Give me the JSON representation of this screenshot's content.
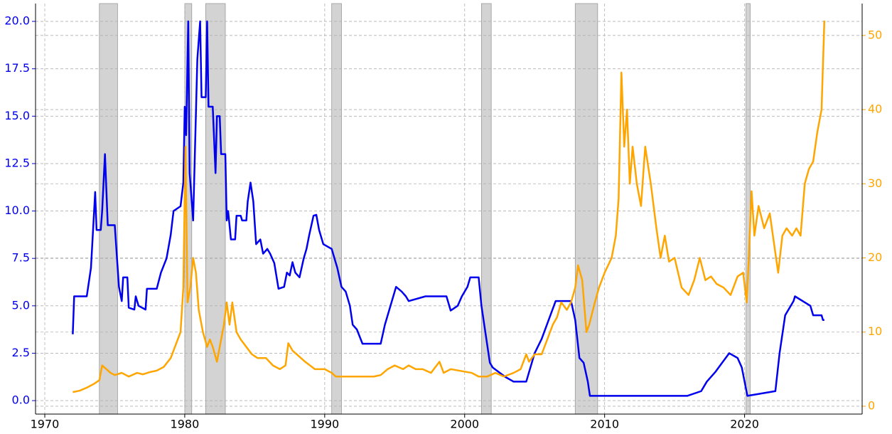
{
  "chart_data": {
    "type": "line",
    "xlim": [
      1969.34,
      2028.4
    ],
    "xticks": [
      1970,
      1980,
      1990,
      2000,
      2010,
      2020
    ],
    "ylim": [
      -0.71,
      20.94
    ],
    "yticks": [
      {
        "value": 0,
        "label": "0.0"
      },
      2.5,
      {
        "value": 5,
        "label": "5.0"
      },
      7.5,
      {
        "value": 10,
        "label": "10.0"
      },
      12.5,
      {
        "value": 15,
        "label": "15.0"
      },
      17.5,
      {
        "value": 20,
        "label": "20.0"
      }
    ],
    "y2lim": [
      -1.06,
      54.3
    ],
    "y2ticks": [
      0,
      10,
      20,
      30,
      40,
      50
    ],
    "grid": true,
    "shaded_regions": [
      [
        1973.9,
        1975.2
      ],
      [
        1980.0,
        1980.5
      ],
      [
        1981.5,
        1982.9
      ],
      [
        1990.5,
        1991.2
      ],
      [
        2001.2,
        2001.9
      ],
      [
        2007.9,
        2009.5
      ],
      [
        2020.1,
        2020.4
      ]
    ],
    "shade_color": "#d3d3d3",
    "series": [
      {
        "color": "#0000ee",
        "axis": "y",
        "x": [
          1972.0,
          1972.1,
          1973.0,
          1973.3,
          1973.6,
          1973.7,
          1974.0,
          1974.1,
          1974.3,
          1974.5,
          1975.0,
          1975.3,
          1975.5,
          1975.6,
          1975.9,
          1976.0,
          1976.4,
          1976.5,
          1976.7,
          1977.2,
          1977.3,
          1978.0,
          1978.3,
          1978.7,
          1979.0,
          1979.2,
          1979.7,
          1979.9,
          1980.0,
          1980.1,
          1980.25,
          1980.35,
          1980.6,
          1980.9,
          1981.1,
          1981.2,
          1981.5,
          1981.6,
          1981.7,
          1982.0,
          1982.2,
          1982.3,
          1982.5,
          1982.6,
          1982.9,
          1983.0,
          1983.1,
          1983.3,
          1983.6,
          1983.7,
          1984.0,
          1984.1,
          1984.4,
          1984.5,
          1984.7,
          1984.9,
          1985.1,
          1985.4,
          1985.6,
          1985.9,
          1986.1,
          1986.4,
          1986.7,
          1987.1,
          1987.3,
          1987.5,
          1987.7,
          1987.9,
          1988.2,
          1988.5,
          1988.7,
          1988.9,
          1989.2,
          1989.4,
          1989.6,
          1989.9,
          1990.5,
          1990.9,
          1991.2,
          1991.5,
          1991.8,
          1992.0,
          1992.3,
          1992.7,
          1994.0,
          1994.3,
          1994.6,
          1994.9,
          1995.1,
          1995.5,
          1995.8,
          1996.0,
          1997.2,
          1998.7,
          1999.0,
          1999.5,
          1999.8,
          2000.2,
          2000.4,
          2001.0,
          2001.2,
          2001.4,
          2001.8,
          2002.0,
          2002.9,
          2003.5,
          2004.4,
          2004.7,
          2005.0,
          2005.5,
          2006.0,
          2006.5,
          2007.6,
          2007.9,
          2008.2,
          2008.5,
          2008.8,
          2008.95,
          2015.9,
          2016.9,
          2017.3,
          2017.9,
          2018.4,
          2018.9,
          2019.5,
          2019.8,
          2020.2,
          2022.2,
          2022.5,
          2022.9,
          2023.5,
          2023.6,
          2024.7,
          2024.9,
          2025.5,
          2025.6,
          2025.7
        ],
        "values": [
          3.5,
          5.5,
          5.5,
          7.0,
          11.0,
          9.0,
          9.0,
          10.0,
          13.0,
          9.25,
          9.25,
          6.0,
          5.25,
          6.5,
          6.5,
          4.9,
          4.8,
          5.5,
          5.0,
          4.8,
          5.9,
          5.9,
          6.75,
          7.5,
          8.75,
          10.0,
          10.25,
          11.5,
          15.5,
          14.0,
          20.0,
          12.0,
          9.5,
          18.0,
          20.0,
          16.0,
          16.0,
          20.0,
          15.5,
          15.5,
          12.0,
          15.0,
          15.0,
          13.0,
          13.0,
          9.5,
          10.0,
          8.5,
          8.5,
          9.75,
          9.75,
          9.5,
          9.5,
          10.5,
          11.5,
          10.5,
          8.25,
          8.5,
          7.75,
          8.0,
          7.75,
          7.25,
          5.9,
          6.0,
          6.75,
          6.6,
          7.3,
          6.75,
          6.5,
          7.5,
          8.0,
          8.75,
          9.75,
          9.8,
          9.0,
          8.25,
          8.0,
          7.0,
          6.0,
          5.75,
          5.0,
          4.0,
          3.75,
          3.0,
          3.0,
          4.0,
          4.75,
          5.5,
          6.0,
          5.75,
          5.5,
          5.25,
          5.5,
          5.5,
          4.75,
          5.0,
          5.5,
          6.0,
          6.5,
          6.5,
          5.0,
          4.0,
          2.0,
          1.75,
          1.25,
          1.0,
          1.0,
          1.75,
          2.5,
          3.25,
          4.25,
          5.25,
          5.25,
          4.25,
          2.25,
          2.0,
          1.0,
          0.25,
          0.25,
          0.5,
          1.0,
          1.5,
          2.0,
          2.5,
          2.25,
          1.75,
          0.25,
          0.5,
          2.5,
          4.5,
          5.25,
          5.5,
          5.0,
          4.5,
          4.5,
          4.25,
          4.25
        ]
      },
      {
        "color": "#ffa500",
        "axis": "y2",
        "x": [
          1972.0,
          1972.5,
          1973.0,
          1973.5,
          1973.9,
          1974.1,
          1974.4,
          1974.7,
          1975.0,
          1975.5,
          1976.0,
          1976.6,
          1977.0,
          1977.5,
          1978.0,
          1978.5,
          1979.0,
          1979.4,
          1979.7,
          1979.9,
          1980.05,
          1980.2,
          1980.4,
          1980.6,
          1980.8,
          1981.0,
          1981.3,
          1981.6,
          1981.8,
          1982.0,
          1982.3,
          1982.6,
          1982.8,
          1983.0,
          1983.2,
          1983.4,
          1983.7,
          1984.0,
          1984.4,
          1984.8,
          1985.2,
          1985.8,
          1986.3,
          1986.8,
          1987.2,
          1987.4,
          1987.7,
          1988.0,
          1988.6,
          1989.3,
          1990.0,
          1990.5,
          1990.8,
          1991.5,
          1992.5,
          1993.5,
          1994.0,
          1994.5,
          1995.0,
          1995.6,
          1996.0,
          1996.5,
          1997.0,
          1997.6,
          1998.2,
          1998.5,
          1999.0,
          1999.6,
          2000.5,
          2001.0,
          2001.6,
          2002.2,
          2002.8,
          2003.5,
          2004.0,
          2004.4,
          2004.6,
          2005.0,
          2005.5,
          2005.9,
          2006.3,
          2006.6,
          2006.9,
          2007.3,
          2007.6,
          2007.9,
          2008.1,
          2008.4,
          2008.7,
          2008.9,
          2009.3,
          2009.6,
          2010.0,
          2010.5,
          2010.8,
          2011.0,
          2011.2,
          2011.4,
          2011.6,
          2011.8,
          2012.0,
          2012.3,
          2012.6,
          2012.9,
          2013.3,
          2013.7,
          2014.0,
          2014.3,
          2014.6,
          2015.0,
          2015.5,
          2016.0,
          2016.4,
          2016.8,
          2017.2,
          2017.6,
          2018.0,
          2018.5,
          2019.0,
          2019.5,
          2019.9,
          2020.15,
          2020.3,
          2020.5,
          2020.7,
          2021.0,
          2021.4,
          2021.8,
          2022.1,
          2022.4,
          2022.7,
          2023.0,
          2023.4,
          2023.7,
          2024.0,
          2024.3,
          2024.6,
          2024.9,
          2025.2,
          2025.5,
          2025.7
        ],
        "values": [
          1.9,
          2.1,
          2.5,
          3.0,
          3.5,
          5.5,
          5.0,
          4.5,
          4.2,
          4.5,
          4.0,
          4.5,
          4.3,
          4.6,
          4.8,
          5.3,
          6.5,
          8.5,
          10.0,
          16.0,
          35.0,
          14.0,
          16.0,
          20.0,
          18.0,
          13.0,
          10.0,
          8.0,
          9.0,
          8.0,
          6.0,
          9.0,
          11.0,
          14.0,
          11.0,
          14.0,
          10.0,
          9.0,
          8.0,
          7.0,
          6.5,
          6.5,
          5.5,
          5.0,
          5.5,
          8.5,
          7.5,
          7.0,
          6.0,
          5.0,
          5.0,
          4.5,
          4.0,
          4.0,
          4.0,
          4.0,
          4.2,
          5.0,
          5.5,
          5.0,
          5.5,
          5.0,
          5.0,
          4.5,
          6.0,
          4.5,
          5.0,
          4.8,
          4.5,
          4.0,
          4.0,
          4.5,
          4.0,
          4.5,
          5.0,
          7.0,
          6.0,
          7.0,
          7.0,
          9.0,
          11.0,
          12.0,
          14.0,
          13.0,
          14.0,
          16.0,
          19.0,
          17.0,
          10.0,
          11.0,
          14.0,
          16.0,
          18.0,
          20.0,
          23.0,
          28.0,
          45.0,
          35.0,
          40.0,
          30.0,
          35.0,
          30.0,
          27.0,
          35.0,
          30.0,
          24.0,
          20.0,
          23.0,
          19.5,
          20.0,
          16.0,
          15.0,
          17.0,
          20.0,
          17.0,
          17.5,
          16.5,
          16.0,
          15.0,
          17.5,
          18.0,
          14.0,
          20.0,
          29.0,
          23.0,
          27.0,
          24.0,
          26.0,
          22.0,
          18.0,
          23.0,
          24.0,
          23.0,
          24.0,
          23.0,
          30.0,
          32.0,
          33.0,
          37.0,
          40.0,
          52.0
        ]
      }
    ]
  }
}
